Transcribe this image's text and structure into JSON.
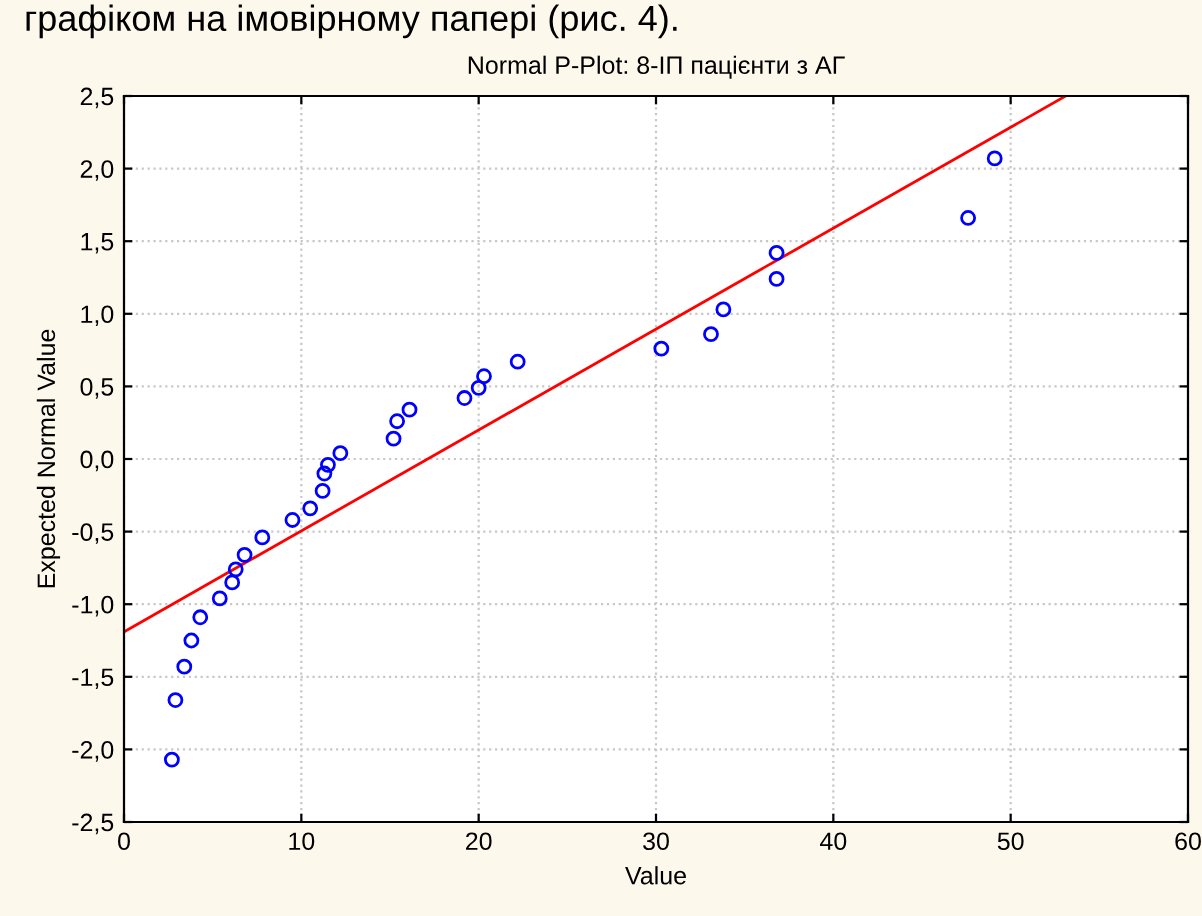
{
  "chart_data": {
    "type": "scatter",
    "title": "Normal P-Plot: 8-ІП пацієнти з АГ",
    "xlabel": "Value",
    "ylabel": "Expected Normal Value",
    "annotations": [
      "графіком на імовірному папері (рис. 4)."
    ],
    "series": [
      {
        "color": "#0000ff",
        "marker": "circle",
        "x": [
          2.7,
          2.9,
          3.4,
          3.8,
          4.3,
          5.4,
          6.1,
          6.3,
          6.8,
          7.8,
          9.5,
          10.5,
          11.2,
          11.3,
          11.5,
          12.2,
          15.2,
          15.4,
          16.1,
          19.2,
          20.0,
          20.3,
          22.2,
          30.3,
          33.1,
          33.8,
          36.8,
          36.8,
          47.6,
          49.1
        ],
        "values": [
          -2.07,
          -1.66,
          -1.43,
          -1.25,
          -1.09,
          -0.96,
          -0.85,
          -0.76,
          -0.66,
          -0.54,
          -0.42,
          -0.34,
          -0.22,
          -0.1,
          -0.04,
          0.04,
          0.14,
          0.26,
          0.34,
          0.42,
          0.49,
          0.57,
          0.67,
          0.76,
          0.86,
          1.03,
          1.24,
          1.42,
          1.66,
          2.07
        ]
      },
      {
        "type": "line",
        "color": "#ff0000",
        "marker": "none",
        "line_style": "solid",
        "x": [
          0,
          53.1
        ],
        "values": [
          -1.19,
          2.5
        ]
      }
    ],
    "xlim": [
      0,
      60
    ],
    "xticks": [
      0,
      10,
      20,
      30,
      40,
      50,
      60
    ],
    "ylim": [
      -2.5,
      2.5
    ],
    "yticks": [
      {
        "value": -2.5,
        "label": "-2,5"
      },
      {
        "value": -2.0,
        "label": "-2,0"
      },
      {
        "value": -1.5,
        "label": "-1,5"
      },
      {
        "value": -1.0,
        "label": "-1,0"
      },
      {
        "value": -0.5,
        "label": "-0,5"
      },
      {
        "value": 0.0,
        "label": "0,0"
      },
      {
        "value": 0.5,
        "label": "0,5"
      },
      {
        "value": 1.0,
        "label": "1,0"
      },
      {
        "value": 1.5,
        "label": "1,5"
      },
      {
        "value": 2.0,
        "label": "2,0"
      },
      {
        "value": 2.5,
        "label": "2,5"
      }
    ],
    "grid": true,
    "legend": false
  }
}
